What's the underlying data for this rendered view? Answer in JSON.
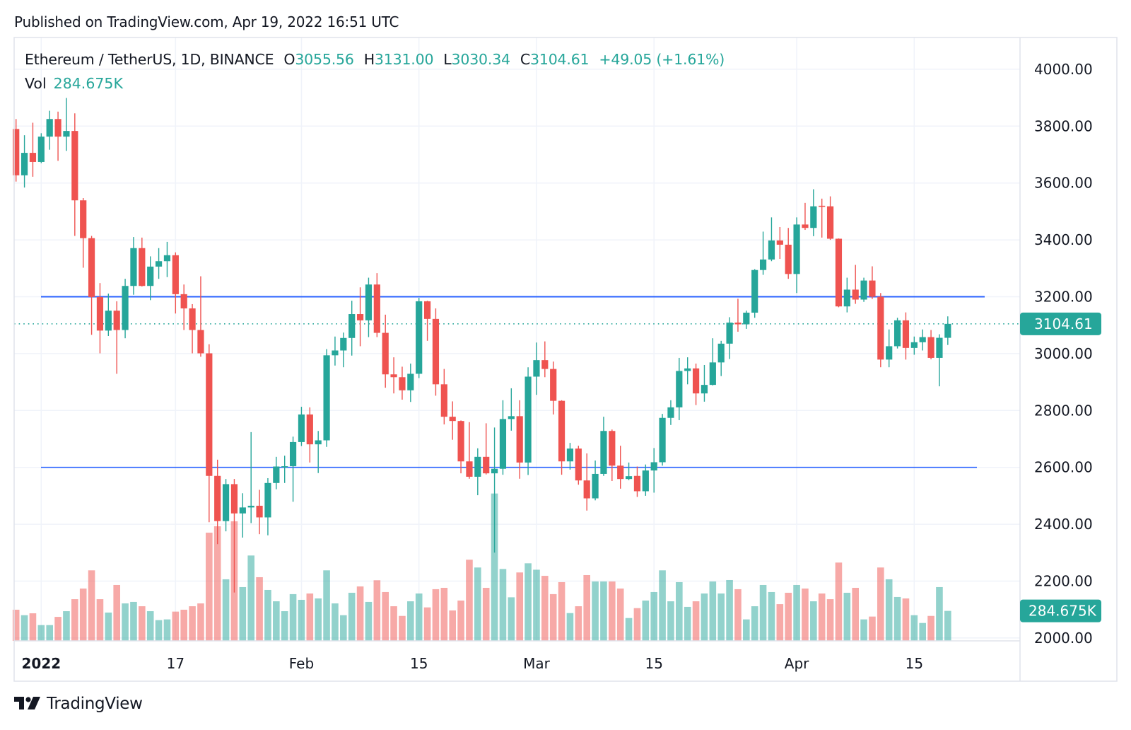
{
  "header": {
    "published": "Published on TradingView.com, Apr 19, 2022 16:51 UTC"
  },
  "legend": {
    "symbol": "Ethereum / TetherUS, 1D, BINANCE",
    "o_label": "O",
    "o_value": "3055.56",
    "h_label": "H",
    "h_value": "3131.00",
    "l_label": "L",
    "l_value": "3030.34",
    "c_label": "C",
    "c_value": "3104.61",
    "change": "+49.05 (+1.61%)",
    "vol_label": "Vol",
    "vol_value": "284.675K"
  },
  "footer": {
    "brand": "TradingView"
  },
  "colors": {
    "up": "#26a69a",
    "down": "#ef5350",
    "line": "#2962ff",
    "grid": "#f0f3fa",
    "text": "#131722"
  },
  "chart_data": {
    "type": "candlestick",
    "title": "Ethereum / TetherUS, 1D, BINANCE",
    "x_start": "2021-12-29",
    "x_end": "2022-04-19",
    "x_tick_labels": [
      "2022",
      "17",
      "Feb",
      "15",
      "Mar",
      "15",
      "Apr",
      "15"
    ],
    "x_tick_dates": [
      "2022-01-01",
      "2022-01-17",
      "2022-02-01",
      "2022-02-15",
      "2022-03-01",
      "2022-03-15",
      "2022-04-01",
      "2022-04-15"
    ],
    "y_tick_labels": [
      "4000.00",
      "3800.00",
      "3600.00",
      "3400.00",
      "3200.00",
      "3000.00",
      "2800.00",
      "2600.00",
      "2400.00",
      "2200.00",
      "2000.00"
    ],
    "ylim": [
      2000,
      4000
    ],
    "last_price_label": "3104.61",
    "last_volume_label": "284.675K",
    "last_price": 3104.61,
    "horizontal_lines": [
      {
        "price": 3200
      },
      {
        "price": 2600
      }
    ],
    "ohlc": [
      [
        3790,
        3825,
        3605,
        3627
      ],
      [
        3627,
        3768,
        3584,
        3706
      ],
      [
        3706,
        3812,
        3622,
        3674
      ],
      [
        3674,
        3775,
        3670,
        3763
      ],
      [
        3763,
        3854,
        3717,
        3825
      ],
      [
        3825,
        3851,
        3678,
        3763
      ],
      [
        3763,
        3899,
        3713,
        3783
      ],
      [
        3783,
        3845,
        3414,
        3539
      ],
      [
        3539,
        3547,
        3302,
        3406
      ],
      [
        3406,
        3414,
        3066,
        3199
      ],
      [
        3199,
        3248,
        3001,
        3081
      ],
      [
        3081,
        3211,
        3062,
        3151
      ],
      [
        3151,
        3184,
        2929,
        3083
      ],
      [
        3083,
        3263,
        3054,
        3238
      ],
      [
        3238,
        3410,
        3207,
        3371
      ],
      [
        3371,
        3408,
        3236,
        3238
      ],
      [
        3238,
        3342,
        3188,
        3306
      ],
      [
        3306,
        3371,
        3263,
        3325
      ],
      [
        3325,
        3393,
        3269,
        3346
      ],
      [
        3346,
        3356,
        3141,
        3209
      ],
      [
        3209,
        3243,
        3083,
        3159
      ],
      [
        3159,
        3174,
        3001,
        3083
      ],
      [
        3083,
        3272,
        2989,
        3001
      ],
      [
        3001,
        3033,
        2407,
        2570
      ],
      [
        2570,
        2627,
        2330,
        2411
      ],
      [
        2411,
        2559,
        2375,
        2541
      ],
      [
        2541,
        2559,
        2160,
        2438
      ],
      [
        2438,
        2509,
        2353,
        2459
      ],
      [
        2459,
        2724,
        2404,
        2465
      ],
      [
        2465,
        2521,
        2365,
        2424
      ],
      [
        2424,
        2562,
        2361,
        2545
      ],
      [
        2545,
        2637,
        2523,
        2603
      ],
      [
        2600,
        2641,
        2545,
        2604
      ],
      [
        2604,
        2708,
        2479,
        2689
      ],
      [
        2689,
        2813,
        2675,
        2786
      ],
      [
        2786,
        2811,
        2617,
        2681
      ],
      [
        2681,
        2728,
        2580,
        2695
      ],
      [
        2695,
        3016,
        2672,
        2994
      ],
      [
        2994,
        3060,
        2958,
        3011
      ],
      [
        3011,
        3074,
        2952,
        3055
      ],
      [
        3055,
        3186,
        2993,
        3139
      ],
      [
        3139,
        3233,
        3026,
        3117
      ],
      [
        3117,
        3267,
        3058,
        3243
      ],
      [
        3243,
        3283,
        3058,
        3073
      ],
      [
        3073,
        3137,
        2880,
        2927
      ],
      [
        2927,
        2987,
        2860,
        2917
      ],
      [
        2917,
        2954,
        2838,
        2871
      ],
      [
        2871,
        2965,
        2830,
        2929
      ],
      [
        2929,
        3196,
        2914,
        3184
      ],
      [
        3184,
        3186,
        3045,
        3122
      ],
      [
        3122,
        3159,
        2852,
        2892
      ],
      [
        2892,
        2946,
        2751,
        2778
      ],
      [
        2778,
        2832,
        2697,
        2763
      ],
      [
        2763,
        2765,
        2579,
        2621
      ],
      [
        2621,
        2759,
        2560,
        2567
      ],
      [
        2567,
        2667,
        2502,
        2637
      ],
      [
        2637,
        2755,
        2575,
        2579
      ],
      [
        2579,
        2740,
        2300,
        2595
      ],
      [
        2595,
        2836,
        2574,
        2770
      ],
      [
        2770,
        2878,
        2729,
        2780
      ],
      [
        2780,
        2836,
        2560,
        2617
      ],
      [
        2617,
        2952,
        2573,
        2919
      ],
      [
        2919,
        3039,
        2855,
        2977
      ],
      [
        2977,
        3043,
        2917,
        2946
      ],
      [
        2946,
        2972,
        2786,
        2834
      ],
      [
        2834,
        2836,
        2574,
        2621
      ],
      [
        2621,
        2686,
        2592,
        2666
      ],
      [
        2666,
        2676,
        2539,
        2554
      ],
      [
        2554,
        2649,
        2448,
        2491
      ],
      [
        2491,
        2624,
        2484,
        2577
      ],
      [
        2577,
        2778,
        2570,
        2728
      ],
      [
        2728,
        2733,
        2552,
        2606
      ],
      [
        2606,
        2676,
        2525,
        2559
      ],
      [
        2559,
        2617,
        2555,
        2569
      ],
      [
        2570,
        2603,
        2496,
        2516
      ],
      [
        2516,
        2610,
        2500,
        2589
      ],
      [
        2589,
        2668,
        2511,
        2618
      ],
      [
        2618,
        2788,
        2606,
        2774
      ],
      [
        2774,
        2836,
        2749,
        2811
      ],
      [
        2811,
        2985,
        2766,
        2939
      ],
      [
        2939,
        2987,
        2892,
        2948
      ],
      [
        2948,
        2965,
        2819,
        2860
      ],
      [
        2860,
        2960,
        2831,
        2890
      ],
      [
        2890,
        3054,
        2888,
        2969
      ],
      [
        2969,
        3045,
        2921,
        3035
      ],
      [
        3035,
        3128,
        2981,
        3109
      ],
      [
        3109,
        3193,
        3077,
        3103
      ],
      [
        3103,
        3151,
        3087,
        3144
      ],
      [
        3144,
        3297,
        3126,
        3294
      ],
      [
        3294,
        3429,
        3277,
        3331
      ],
      [
        3331,
        3479,
        3325,
        3398
      ],
      [
        3398,
        3445,
        3333,
        3383
      ],
      [
        3383,
        3442,
        3263,
        3280
      ],
      [
        3280,
        3479,
        3213,
        3454
      ],
      [
        3454,
        3530,
        3435,
        3442
      ],
      [
        3442,
        3578,
        3413,
        3518
      ],
      [
        3520,
        3545,
        3408,
        3516
      ],
      [
        3518,
        3553,
        3400,
        3404
      ],
      [
        3404,
        3405,
        3163,
        3166
      ],
      [
        3166,
        3267,
        3145,
        3225
      ],
      [
        3225,
        3312,
        3175,
        3190
      ],
      [
        3190,
        3267,
        3182,
        3257
      ],
      [
        3257,
        3307,
        3192,
        3200
      ],
      [
        3200,
        3213,
        2952,
        2979
      ],
      [
        2979,
        3085,
        2952,
        3026
      ],
      [
        3026,
        3126,
        3018,
        3117
      ],
      [
        3117,
        3145,
        2979,
        3020
      ],
      [
        3020,
        3060,
        2996,
        3040
      ],
      [
        3040,
        3085,
        3011,
        3058
      ],
      [
        3058,
        3083,
        2980,
        2985
      ],
      [
        2985,
        3068,
        2885,
        3055.56
      ],
      [
        3055.56,
        3131,
        3030.34,
        3104.61
      ]
    ],
    "volume_k": [
      296,
      244,
      262,
      150,
      150,
      228,
      282,
      396,
      497,
      670,
      396,
      269,
      531,
      356,
      370,
      329,
      282,
      197,
      204,
      278,
      296,
      329,
      356,
      1028,
      1089,
      585,
      1136,
      511,
      811,
      605,
      484,
      376,
      282,
      444,
      390,
      450,
      403,
      670,
      356,
      244,
      457,
      517,
      370,
      576,
      464,
      329,
      237,
      376,
      450,
      318,
      491,
      504,
      289,
      383,
      771,
      697,
      504,
      1400,
      683,
      414,
      650,
      737,
      676,
      618,
      444,
      558,
      264,
      329,
      625,
      564,
      564,
      564,
      497,
      217,
      311,
      383,
      464,
      670,
      376,
      558,
      323,
      376,
      450,
      564,
      450,
      578,
      491,
      204,
      329,
      531,
      464,
      349,
      457,
      531,
      497,
      376,
      450,
      396,
      744,
      457,
      504,
      204,
      231,
      697,
      585,
      417,
      403,
      244,
      170,
      237,
      511,
      284.675
    ]
  }
}
